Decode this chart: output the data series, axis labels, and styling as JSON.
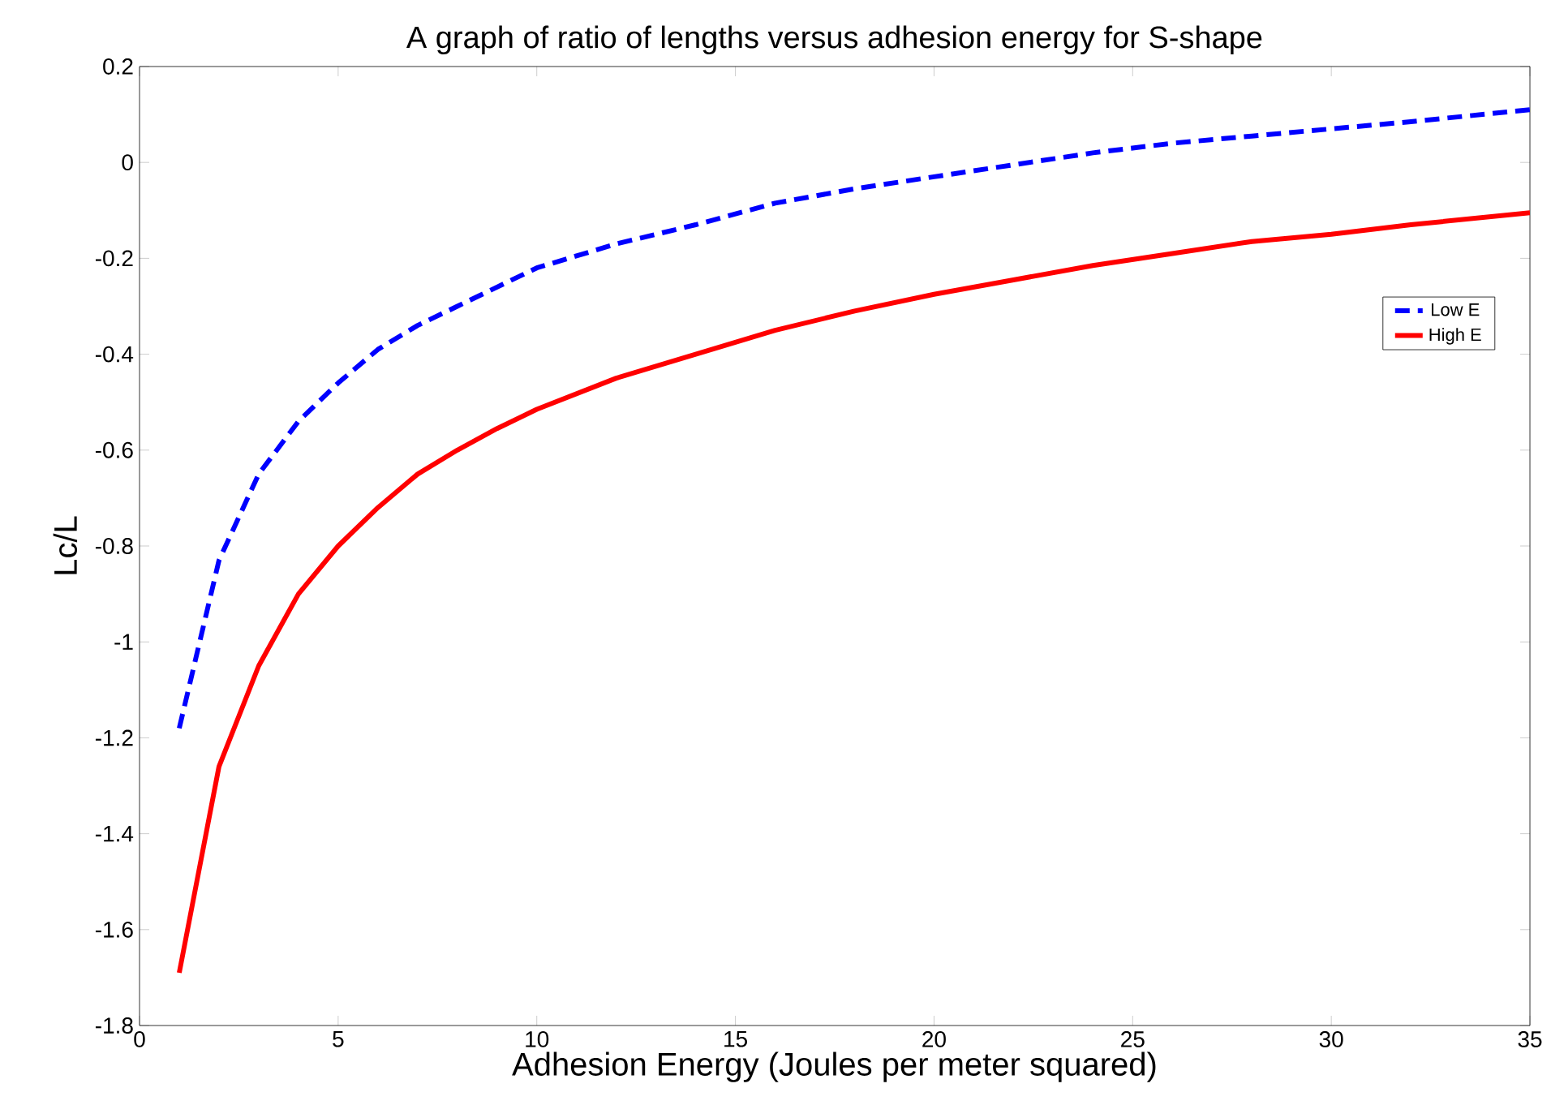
{
  "chart_data": {
    "type": "line",
    "title": "A graph of ratio of lengths versus adhesion energy for S-shape",
    "xlabel": "Adhesion Energy (Joules per meter squared)",
    "ylabel": "Lc/L",
    "x": [
      1,
      2,
      3,
      4,
      5,
      6,
      7,
      8,
      9,
      10,
      12,
      14,
      16,
      18,
      20,
      22,
      24,
      26,
      28,
      30,
      32,
      35
    ],
    "series": [
      {
        "name": "Low E",
        "color": "#0000ff",
        "line_style": "dashed",
        "values": [
          -1.18,
          -0.83,
          -0.65,
          -0.54,
          -0.46,
          -0.39,
          -0.34,
          -0.3,
          -0.26,
          -0.22,
          -0.17,
          -0.13,
          -0.085,
          -0.055,
          -0.03,
          -0.005,
          0.02,
          0.04,
          0.055,
          0.07,
          0.085,
          0.11
        ]
      },
      {
        "name": "High E",
        "color": "#ff0000",
        "line_style": "solid",
        "values": [
          -1.69,
          -1.26,
          -1.05,
          -0.9,
          -0.8,
          -0.72,
          -0.65,
          -0.6,
          -0.555,
          -0.515,
          -0.45,
          -0.4,
          -0.35,
          -0.31,
          -0.275,
          -0.245,
          -0.215,
          -0.19,
          -0.165,
          -0.15,
          -0.13,
          -0.105
        ]
      }
    ],
    "xlim": [
      0,
      35
    ],
    "xticks": [
      0,
      5,
      10,
      15,
      20,
      25,
      30,
      35
    ],
    "ylim": [
      -1.8,
      0.2
    ],
    "yticks": [
      -1.8,
      -1.6,
      -1.4,
      -1.2,
      -1,
      -0.8,
      -0.6,
      -0.4,
      -0.2,
      0,
      0.2
    ],
    "grid": false,
    "legend": "right",
    "marker": "none"
  }
}
